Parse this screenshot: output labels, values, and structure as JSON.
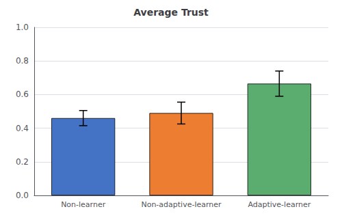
{
  "chart_data": {
    "type": "bar",
    "title": "Average Trust",
    "categories": [
      "Non-learner",
      "Non-adaptive-learner",
      "Adaptive-learner"
    ],
    "values": [
      0.46,
      0.49,
      0.665
    ],
    "errors": [
      0.045,
      0.065,
      0.075
    ],
    "colors": [
      "#4472C4",
      "#ED7D31",
      "#5BAD6F"
    ],
    "ylim": [
      0.0,
      1.0
    ],
    "yticks": [
      {
        "value": 0,
        "label": "0.0"
      },
      0.2,
      0.4,
      0.6,
      0.8,
      {
        "value": 1,
        "label": "1.0"
      }
    ],
    "grid": true
  }
}
